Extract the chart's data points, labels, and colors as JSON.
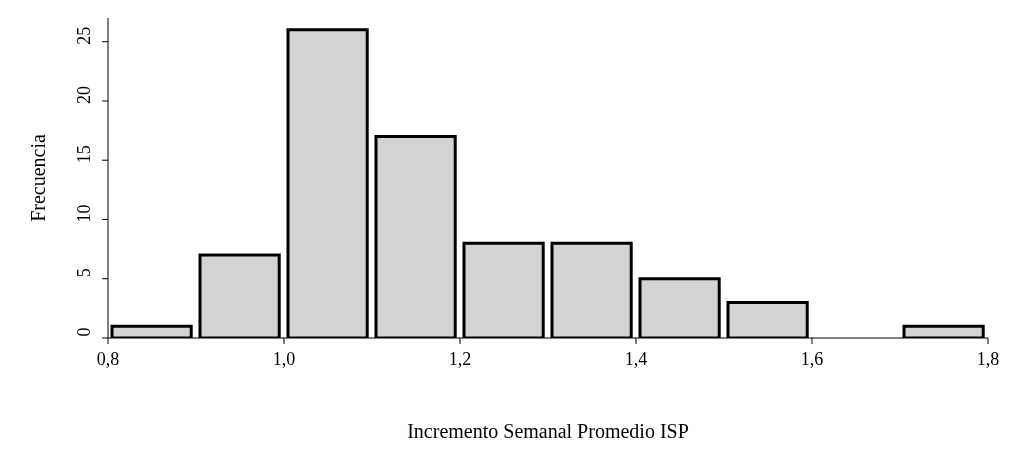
{
  "chart_data": {
    "type": "histogram",
    "xlabel": "Incremento Semanal Promedio ISP",
    "ylabel": "Frecuencia",
    "bins": [
      0.8,
      0.9,
      1.0,
      1.1,
      1.2,
      1.3,
      1.4,
      1.5,
      1.6,
      1.7,
      1.8
    ],
    "values": [
      1,
      7,
      26,
      17,
      8,
      8,
      5,
      3,
      0,
      1
    ],
    "color": "#d3d3d3",
    "xlim": [
      0.8,
      1.8
    ],
    "xticks": [
      {
        "value": 0.8,
        "label": "0,8"
      },
      {
        "value": 1.0,
        "label": "1,0"
      },
      {
        "value": 1.2,
        "label": "1,2"
      },
      {
        "value": 1.4,
        "label": "1,4"
      },
      {
        "value": 1.6,
        "label": "1,6"
      },
      {
        "value": 1.8,
        "label": "1,8"
      }
    ],
    "ylim": [
      0,
      27
    ],
    "yticks": [
      0,
      5,
      10,
      15,
      20,
      25
    ],
    "grid": false
  }
}
